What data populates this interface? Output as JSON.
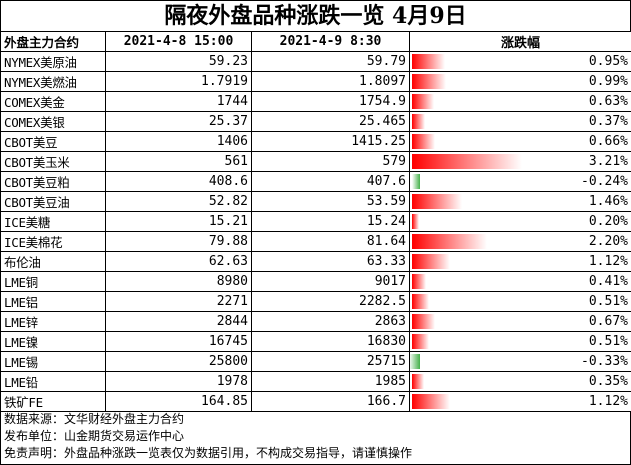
{
  "title": "隔夜外盘品种涨跌一览 4月9日",
  "headers": {
    "name": "外盘主力合约",
    "prev": "2021-4-8 15:00",
    "curr": "2021-4-9 8:30",
    "change": "涨跌幅"
  },
  "colors": {
    "up_bar": "#ff0000",
    "down_bar": "#44b04a"
  },
  "rows": [
    {
      "name": "NYMEX美原油",
      "prev": "59.23",
      "curr": "59.79",
      "change": "0.95%",
      "pct": 0.95
    },
    {
      "name": "NYMEX美燃油",
      "prev": "1.7919",
      "curr": "1.8097",
      "change": "0.99%",
      "pct": 0.99
    },
    {
      "name": "COMEX美金",
      "prev": "1744",
      "curr": "1754.9",
      "change": "0.63%",
      "pct": 0.63
    },
    {
      "name": "COMEX美银",
      "prev": "25.37",
      "curr": "25.465",
      "change": "0.37%",
      "pct": 0.37
    },
    {
      "name": "CBOT美豆",
      "prev": "1406",
      "curr": "1415.25",
      "change": "0.66%",
      "pct": 0.66
    },
    {
      "name": "CBOT美玉米",
      "prev": "561",
      "curr": "579",
      "change": "3.21%",
      "pct": 3.21
    },
    {
      "name": "CBOT美豆粕",
      "prev": "408.6",
      "curr": "407.6",
      "change": "-0.24%",
      "pct": -0.24
    },
    {
      "name": "CBOT美豆油",
      "prev": "52.82",
      "curr": "53.59",
      "change": "1.46%",
      "pct": 1.46
    },
    {
      "name": "ICE美糖",
      "prev": "15.21",
      "curr": "15.24",
      "change": "0.20%",
      "pct": 0.2
    },
    {
      "name": "ICE美棉花",
      "prev": "79.88",
      "curr": "81.64",
      "change": "2.20%",
      "pct": 2.2
    },
    {
      "name": "布伦油",
      "prev": "62.63",
      "curr": "63.33",
      "change": "1.12%",
      "pct": 1.12
    },
    {
      "name": "LME铜",
      "prev": "8980",
      "curr": "9017",
      "change": "0.41%",
      "pct": 0.41
    },
    {
      "name": "LME铝",
      "prev": "2271",
      "curr": "2282.5",
      "change": "0.51%",
      "pct": 0.51
    },
    {
      "name": "LME锌",
      "prev": "2844",
      "curr": "2863",
      "change": "0.67%",
      "pct": 0.67
    },
    {
      "name": "LME镍",
      "prev": "16745",
      "curr": "16830",
      "change": "0.51%",
      "pct": 0.51
    },
    {
      "name": "LME锡",
      "prev": "25800",
      "curr": "25715",
      "change": "-0.33%",
      "pct": -0.33
    },
    {
      "name": "LME铅",
      "prev": "1978",
      "curr": "1985",
      "change": "0.35%",
      "pct": 0.35
    },
    {
      "name": "铁矿FE",
      "prev": "164.85",
      "curr": "166.7",
      "change": "1.12%",
      "pct": 1.12
    }
  ],
  "footer": {
    "source": "数据来源：文华财经外盘主力合约",
    "publisher": "发布单位：山金期货交易运作中心",
    "disclaimer": "免责声明：外盘品种涨跌一览表仅为数据引用，不构成交易指导，请谨慎操作"
  }
}
